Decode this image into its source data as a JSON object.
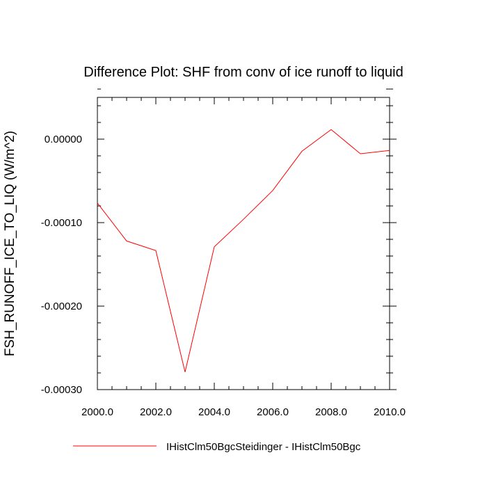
{
  "chart_data": {
    "type": "line",
    "title": "Difference Plot: SHF from conv of ice runoff to liquid",
    "xlabel": "",
    "ylabel": "FSH_RUNOFF_ICE_TO_LIQ  (W/m^2)",
    "xlim": [
      2000,
      2010
    ],
    "ylim": [
      -0.0003,
      5e-05
    ],
    "x_ticks": [
      2000,
      2002,
      2004,
      2006,
      2008,
      2010
    ],
    "x_tick_labels": [
      "2000.0",
      "2002.0",
      "2004.0",
      "2006.0",
      "2008.0",
      "2010.0"
    ],
    "y_ticks": [
      -0.0003,
      -0.0002,
      -0.0001,
      0.0
    ],
    "y_tick_labels": [
      "-0.00030",
      "-0.00020",
      "-0.00010",
      "0.00000"
    ],
    "x_minor_step": 0.5,
    "y_minor_step": 2e-05,
    "grid": false,
    "legend_position": "bottom-center",
    "series": [
      {
        "name": "IHistClm50BgcSteidinger - IHistClm50Bgc",
        "color": "#ff0000",
        "x": [
          2000,
          2001,
          2002,
          2003,
          2004,
          2005,
          2006,
          2007,
          2008,
          2009,
          2010
        ],
        "y": [
          -7.65e-05,
          -0.000122,
          -0.0001335,
          -0.000279,
          -0.000129,
          -9.6e-05,
          -6.15e-05,
          -1.45e-05,
          1.15e-05,
          -1.75e-05,
          -1.35e-05
        ]
      }
    ]
  }
}
